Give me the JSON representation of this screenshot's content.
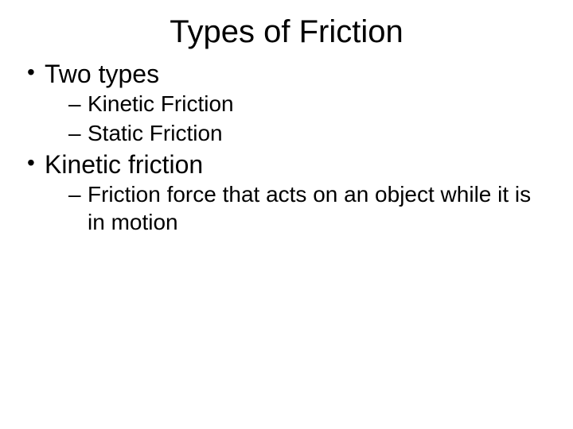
{
  "slide": {
    "title": "Types of Friction",
    "bullets": {
      "item1": "Two types",
      "item1_sub1": "Kinetic Friction",
      "item1_sub2": "Static Friction",
      "item2": "Kinetic friction",
      "item2_sub1": "Friction force that acts on an object while it is in motion"
    }
  },
  "style": {
    "background_color": "#ffffff",
    "text_color": "#000000",
    "font_family": "Arial",
    "title_fontsize": 40,
    "level1_fontsize": 32,
    "level2_fontsize": 28
  }
}
